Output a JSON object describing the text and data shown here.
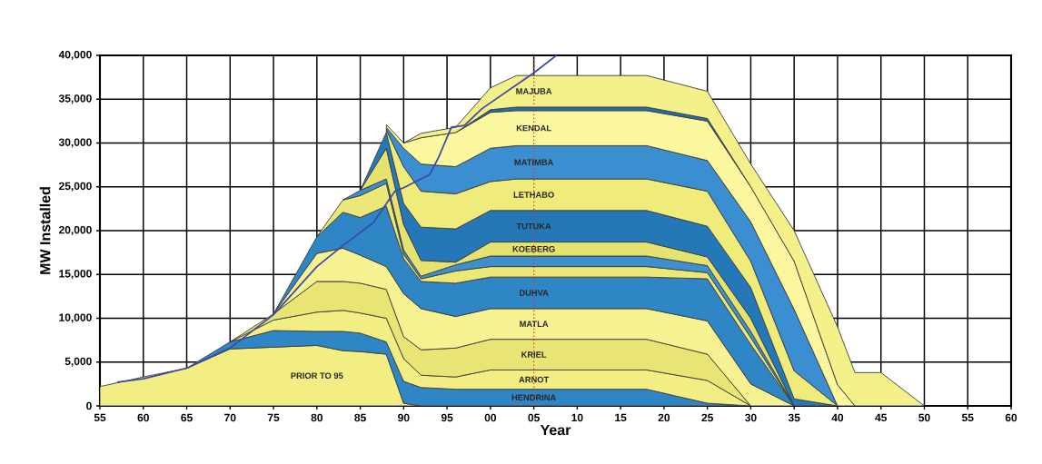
{
  "chart_data": {
    "type": "area",
    "stacked": true,
    "xlabel": "Year",
    "ylabel": "MW Installed",
    "grid": true,
    "x": [
      1955,
      1960,
      1965,
      1970,
      1975,
      1980,
      1983,
      1985,
      1988,
      1990,
      1992,
      1996,
      2000,
      2003,
      2018,
      2025,
      2030,
      2035,
      2040,
      2042,
      2045,
      2050
    ],
    "xlim": [
      1955,
      2060
    ],
    "ylim": [
      0,
      40000
    ],
    "xticks": [
      {
        "value": 1955,
        "label": "55"
      },
      {
        "value": 1960,
        "label": "60"
      },
      {
        "value": 1965,
        "label": "65"
      },
      {
        "value": 1970,
        "label": "70"
      },
      {
        "value": 1975,
        "label": "75"
      },
      {
        "value": 1980,
        "label": "80"
      },
      {
        "value": 1985,
        "label": "85"
      },
      {
        "value": 1990,
        "label": "90"
      },
      {
        "value": 1995,
        "label": "95"
      },
      {
        "value": 2000,
        "label": "00"
      },
      {
        "value": 2005,
        "label": "05"
      },
      {
        "value": 2010,
        "label": "10"
      },
      {
        "value": 2015,
        "label": "15"
      },
      {
        "value": 2020,
        "label": "20"
      },
      {
        "value": 2025,
        "label": "25"
      },
      {
        "value": 2030,
        "label": "30"
      },
      {
        "value": 2035,
        "label": "35"
      },
      {
        "value": 2040,
        "label": "40"
      },
      {
        "value": 2045,
        "label": "45"
      },
      {
        "value": 2050,
        "label": "50"
      },
      {
        "value": 2055,
        "label": "55"
      },
      {
        "value": 2060,
        "label": "60"
      }
    ],
    "yticks": [
      0,
      {
        "value": 5000,
        "label": "5,000"
      },
      {
        "value": 10000,
        "label": "10,000"
      },
      {
        "value": 15000,
        "label": "15,000"
      },
      {
        "value": 20000,
        "label": "20,000"
      },
      {
        "value": 25000,
        "label": "25,000"
      },
      {
        "value": 30000,
        "label": "30,000"
      },
      {
        "value": 35000,
        "label": "35,000"
      },
      {
        "value": 40000,
        "label": "40,000"
      }
    ],
    "series": [
      {
        "name": "PRIOR TO 95",
        "color": "#f2ee84",
        "values": [
          2200,
          3300,
          4300,
          6500,
          6700,
          6900,
          6300,
          6200,
          5900,
          300,
          0,
          null,
          null,
          null,
          null,
          null,
          null,
          null,
          null,
          null,
          null,
          null
        ]
      },
      {
        "name": "HENDRINA",
        "color": "#2f86c5",
        "values": [
          null,
          null,
          0,
          800,
          1900,
          1600,
          2200,
          2100,
          1400,
          2500,
          2100,
          1900,
          1900,
          1900,
          1900,
          300,
          0,
          null,
          null,
          null,
          null,
          null
        ]
      },
      {
        "name": "ARNOT",
        "color": "#f2ee84",
        "values": [
          null,
          null,
          null,
          0,
          1200,
          2200,
          2400,
          2300,
          2700,
          2600,
          1400,
          1400,
          2200,
          2200,
          2200,
          2600,
          0,
          null,
          null,
          null,
          null,
          null
        ]
      },
      {
        "name": "KRIEL",
        "color": "#e9e574",
        "values": [
          null,
          null,
          null,
          0,
          700,
          3500,
          3300,
          3400,
          3300,
          2500,
          2900,
          3300,
          3500,
          3500,
          3500,
          3000,
          0,
          null,
          null,
          null,
          null,
          null
        ]
      },
      {
        "name": "MATLA",
        "color": "#f6f292",
        "values": [
          null,
          null,
          null,
          null,
          0,
          3200,
          3800,
          3200,
          2600,
          4900,
          4700,
          3600,
          3500,
          3500,
          3500,
          3800,
          2500,
          0,
          null,
          null,
          null,
          null
        ]
      },
      {
        "name": "DUHVA",
        "color": "#2f86c5",
        "values": [
          null,
          null,
          null,
          null,
          0,
          1900,
          4100,
          4300,
          6900,
          4000,
          3100,
          3800,
          3600,
          3600,
          3600,
          4800,
          4500,
          0,
          null,
          null,
          null,
          null
        ]
      },
      {
        "color": "#ece878",
        "values": [
          null,
          null,
          null,
          null,
          null,
          0,
          1400,
          2500,
          2600,
          500,
          300,
          1400,
          1200,
          1200,
          1200,
          700,
          800,
          0,
          null,
          null,
          null,
          null
        ]
      },
      {
        "color": "#3d90cc",
        "values": [
          null,
          null,
          null,
          null,
          null,
          null,
          0,
          600,
          500,
          500,
          300,
          700,
          1200,
          1200,
          1200,
          800,
          700,
          0,
          null,
          null,
          null,
          null
        ]
      },
      {
        "name": "KOEBERG",
        "color": "#e6e270",
        "values": [
          null,
          null,
          null,
          null,
          null,
          null,
          null,
          0,
          3500,
          2900,
          1800,
          300,
          1600,
          1600,
          1600,
          1000,
          1500,
          0,
          null,
          null,
          null,
          null
        ]
      },
      {
        "name": "TUTUKA",
        "color": "#2478b8",
        "values": [
          null,
          null,
          null,
          null,
          null,
          null,
          null,
          0,
          1800,
          2400,
          3800,
          3800,
          3600,
          3600,
          3600,
          3500,
          3500,
          800,
          0,
          null,
          null,
          null
        ]
      },
      {
        "name": "LETHABO",
        "color": "#f0ec7c",
        "values": [
          null,
          null,
          null,
          null,
          null,
          null,
          null,
          null,
          300,
          4200,
          4100,
          4000,
          3300,
          3600,
          3600,
          4000,
          3000,
          3200,
          0,
          null,
          null,
          null
        ]
      },
      {
        "name": "MATIMBA",
        "color": "#3b8fd0",
        "values": [
          null,
          null,
          null,
          null,
          null,
          null,
          null,
          null,
          300,
          2100,
          3100,
          3100,
          3800,
          3800,
          3800,
          3500,
          4500,
          7000,
          0,
          null,
          null,
          null
        ]
      },
      {
        "name": "KENDAL",
        "color": "#fbf79e",
        "values": [
          null,
          null,
          null,
          null,
          null,
          null,
          null,
          null,
          300,
          600,
          3000,
          3900,
          4100,
          4000,
          4000,
          4500,
          4000,
          5500,
          2400,
          0,
          null,
          null
        ]
      },
      {
        "color": "#1f70b0",
        "values": [
          null,
          null,
          null,
          null,
          null,
          null,
          null,
          null,
          null,
          null,
          null,
          0,
          300,
          400,
          400,
          300,
          0,
          null,
          null,
          null,
          null,
          null
        ]
      },
      {
        "name": "MAJUBA",
        "color": "#f4f08a",
        "values": [
          null,
          null,
          null,
          null,
          null,
          null,
          null,
          null,
          null,
          0,
          500,
          600,
          2500,
          3600,
          3600,
          3100,
          2600,
          3500,
          6600,
          3800,
          3800,
          0
        ]
      },
      {
        "type": "line",
        "color": "#3b4aa8",
        "line_style": "solid",
        "x": [
          1957,
          1960,
          1965,
          1970,
          1975,
          1980,
          1983,
          1986.5,
          1989,
          1990,
          1993,
          1994,
          1995.5,
          1997,
          1999,
          2005,
          2007.6
        ],
        "values": [
          2700,
          3100,
          4300,
          6600,
          10400,
          15900,
          18300,
          20900,
          24500,
          24900,
          26400,
          28300,
          31800,
          32000,
          33900,
          38000,
          40000
        ]
      }
    ],
    "ref_lines": [
      {
        "axis": "x",
        "value": 2005,
        "color": "#e03020",
        "line_style": "dotted"
      }
    ]
  }
}
